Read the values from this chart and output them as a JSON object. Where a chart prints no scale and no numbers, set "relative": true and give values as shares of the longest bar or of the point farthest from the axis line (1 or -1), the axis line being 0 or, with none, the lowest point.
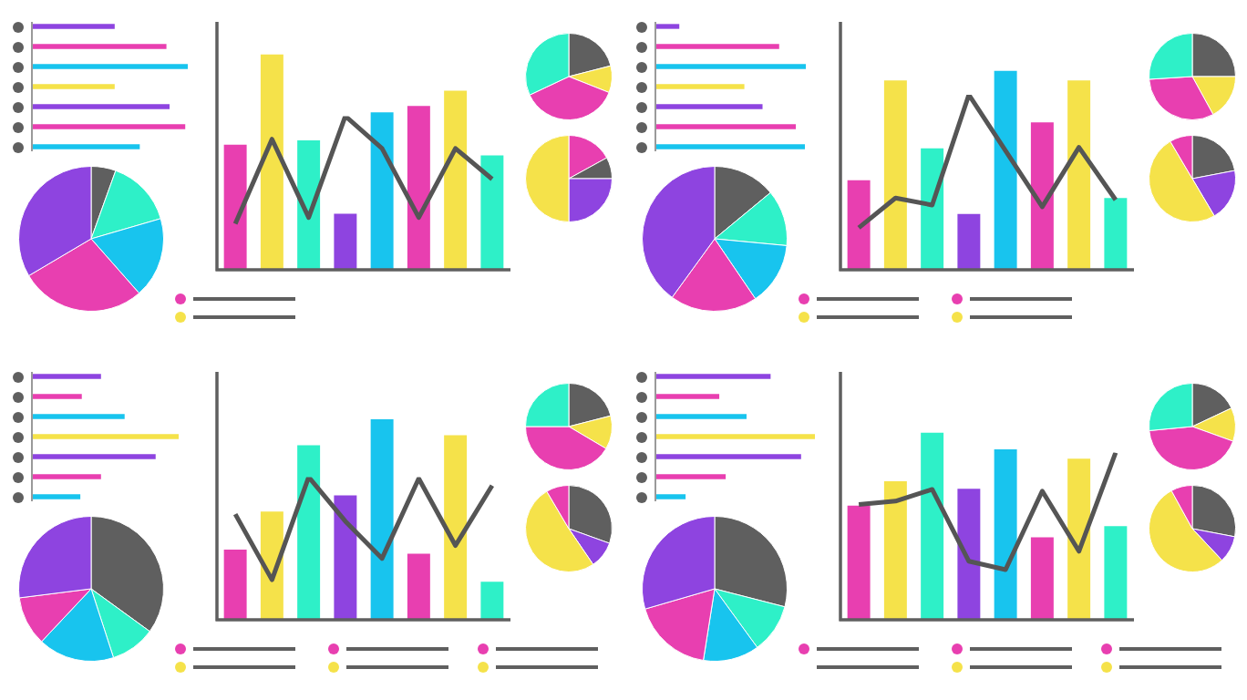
{
  "chart_data": [
    {
      "type": "bar",
      "orientation": "horizontal",
      "relative": true,
      "categories": [
        null,
        null,
        null,
        null,
        null,
        null,
        null
      ],
      "values": [
        0.53,
        0.86,
        1,
        0.53,
        0.88,
        0.98,
        0.69
      ],
      "colors": [
        "#8e44e0",
        "#e83fb0",
        "#18c4ee",
        "#f5e24a",
        "#8e44e0",
        "#e83fb0",
        "#18c4ee"
      ]
    },
    {
      "type": "pie",
      "categories": [
        null,
        null,
        null,
        null,
        null
      ],
      "values": [
        5.5,
        15,
        18,
        28,
        33.5
      ],
      "colors": [
        "#5f5f5f",
        "#2ef0c8",
        "#18c4ee",
        "#e83fb0",
        "#8e44e0"
      ]
    },
    {
      "type": "bar",
      "relative": true,
      "categories": [
        null,
        null,
        null,
        null,
        null,
        null,
        null,
        null
      ],
      "values": [
        0.58,
        1,
        0.6,
        0.26,
        0.73,
        0.76,
        0.83,
        0.53
      ],
      "colors": [
        "#e83fb0",
        "#f5e24a",
        "#2ef0c8",
        "#8e44e0",
        "#18c4ee",
        "#e83fb0",
        "#f5e24a",
        "#2ef0c8"
      ]
    },
    {
      "type": "line",
      "relative": true,
      "marker": "none",
      "categories": [
        null,
        null,
        null,
        null,
        null,
        null,
        null,
        null
      ],
      "series": [
        {
          "color": "#555555",
          "values": [
            0.3,
            0.85,
            0.34,
            1,
            0.79,
            0.34,
            0.79,
            0.59
          ]
        }
      ]
    },
    {
      "type": "pie",
      "categories": [
        null,
        null,
        null,
        null
      ],
      "values": [
        21,
        10,
        37,
        32
      ],
      "colors": [
        "#5f5f5f",
        "#f5e24a",
        "#e83fb0",
        "#2ef0c8"
      ]
    },
    {
      "type": "pie",
      "categories": [
        null,
        null,
        null,
        null
      ],
      "values": [
        17,
        8,
        25,
        50
      ],
      "colors": [
        "#e83fb0",
        "#5f5f5f",
        "#8e44e0",
        "#f5e24a"
      ]
    },
    {
      "type": "bar",
      "orientation": "horizontal",
      "relative": true,
      "categories": [
        null,
        null,
        null,
        null,
        null,
        null,
        null
      ],
      "values": [
        0.16,
        0.82,
        1,
        0.59,
        0.71,
        0.93,
        0.99
      ],
      "colors": [
        "#8e44e0",
        "#e83fb0",
        "#18c4ee",
        "#f5e24a",
        "#8e44e0",
        "#e83fb0",
        "#18c4ee"
      ]
    },
    {
      "type": "pie",
      "categories": [
        null,
        null,
        null,
        null,
        null
      ],
      "values": [
        14,
        12.5,
        14,
        19.5,
        40
      ],
      "colors": [
        "#5f5f5f",
        "#2ef0c8",
        "#18c4ee",
        "#e83fb0",
        "#8e44e0"
      ]
    },
    {
      "type": "bar",
      "relative": true,
      "categories": [
        null,
        null,
        null,
        null,
        null,
        null,
        null,
        null
      ],
      "values": [
        0.45,
        0.95,
        0.61,
        0.28,
        1,
        0.74,
        0.95,
        0.36
      ],
      "colors": [
        "#e83fb0",
        "#f5e24a",
        "#2ef0c8",
        "#8e44e0",
        "#18c4ee",
        "#e83fb0",
        "#f5e24a",
        "#2ef0c8"
      ]
    },
    {
      "type": "line",
      "relative": true,
      "marker": "none",
      "categories": [
        null,
        null,
        null,
        null,
        null,
        null,
        null,
        null
      ],
      "series": [
        {
          "color": "#555555",
          "values": [
            0.24,
            0.41,
            0.37,
            1,
            0.68,
            0.36,
            0.7,
            0.4
          ]
        }
      ]
    },
    {
      "type": "pie",
      "categories": [
        null,
        null,
        null,
        null
      ],
      "values": [
        25,
        17,
        32,
        26
      ],
      "colors": [
        "#5f5f5f",
        "#f5e24a",
        "#e83fb0",
        "#2ef0c8"
      ]
    },
    {
      "type": "pie",
      "categories": [
        null,
        null,
        null,
        null
      ],
      "values": [
        22,
        19.5,
        50,
        8.5
      ],
      "colors": [
        "#5f5f5f",
        "#8e44e0",
        "#f5e24a",
        "#e83fb0"
      ]
    },
    {
      "type": "bar",
      "orientation": "horizontal",
      "relative": true,
      "categories": [
        null,
        null,
        null,
        null,
        null,
        null,
        null
      ],
      "values": [
        0.47,
        0.34,
        0.63,
        1,
        0.84,
        0.47,
        0.33
      ],
      "colors": [
        "#8e44e0",
        "#e83fb0",
        "#18c4ee",
        "#f5e24a",
        "#8e44e0",
        "#e83fb0",
        "#18c4ee"
      ]
    },
    {
      "type": "pie",
      "categories": [
        null,
        null,
        null,
        null,
        null
      ],
      "values": [
        35,
        10,
        17,
        11,
        27
      ],
      "colors": [
        "#5f5f5f",
        "#2ef0c8",
        "#18c4ee",
        "#e83fb0",
        "#8e44e0"
      ]
    },
    {
      "type": "bar",
      "relative": true,
      "categories": [
        null,
        null,
        null,
        null,
        null,
        null,
        null,
        null
      ],
      "values": [
        0.35,
        0.54,
        0.87,
        0.62,
        1,
        0.33,
        0.92,
        0.19
      ],
      "colors": [
        "#e83fb0",
        "#f5e24a",
        "#2ef0c8",
        "#8e44e0",
        "#18c4ee",
        "#e83fb0",
        "#f5e24a",
        "#2ef0c8"
      ]
    },
    {
      "type": "line",
      "relative": true,
      "marker": "none",
      "categories": [
        null,
        null,
        null,
        null,
        null,
        null,
        null,
        null
      ],
      "series": [
        {
          "color": "#555555",
          "values": [
            0.74,
            0.28,
            1,
            0.69,
            0.43,
            0.99,
            0.52,
            0.94
          ]
        }
      ]
    },
    {
      "type": "pie",
      "categories": [
        null,
        null,
        null,
        null
      ],
      "values": [
        21,
        12.5,
        41.5,
        25
      ],
      "colors": [
        "#5f5f5f",
        "#f5e24a",
        "#e83fb0",
        "#2ef0c8"
      ]
    },
    {
      "type": "pie",
      "categories": [
        null,
        null,
        null,
        null
      ],
      "values": [
        30.5,
        10,
        51,
        8.5
      ],
      "colors": [
        "#5f5f5f",
        "#8e44e0",
        "#f5e24a",
        "#e83fb0"
      ]
    },
    {
      "type": "bar",
      "orientation": "horizontal",
      "relative": true,
      "categories": [
        null,
        null,
        null,
        null,
        null,
        null,
        null
      ],
      "values": [
        0.72,
        0.4,
        0.57,
        1,
        0.91,
        0.44,
        0.19
      ],
      "colors": [
        "#8e44e0",
        "#e83fb0",
        "#18c4ee",
        "#f5e24a",
        "#8e44e0",
        "#e83fb0",
        "#18c4ee"
      ]
    },
    {
      "type": "pie",
      "categories": [
        null,
        null,
        null,
        null,
        null
      ],
      "values": [
        29,
        11,
        12.5,
        18,
        29.5
      ],
      "colors": [
        "#5f5f5f",
        "#2ef0c8",
        "#18c4ee",
        "#e83fb0",
        "#8e44e0"
      ]
    },
    {
      "type": "bar",
      "relative": true,
      "categories": [
        null,
        null,
        null,
        null,
        null,
        null,
        null,
        null
      ],
      "values": [
        0.61,
        0.74,
        1,
        0.7,
        0.91,
        0.44,
        0.86,
        0.5
      ],
      "colors": [
        "#e83fb0",
        "#f5e24a",
        "#2ef0c8",
        "#8e44e0",
        "#18c4ee",
        "#e83fb0",
        "#f5e24a",
        "#2ef0c8"
      ]
    },
    {
      "type": "line",
      "relative": true,
      "marker": "none",
      "categories": [
        null,
        null,
        null,
        null,
        null,
        null,
        null,
        null
      ],
      "series": [
        {
          "color": "#555555",
          "values": [
            0.69,
            0.71,
            0.78,
            0.35,
            0.3,
            0.77,
            0.41,
            1
          ]
        }
      ]
    },
    {
      "type": "pie",
      "categories": [
        null,
        null,
        null,
        null
      ],
      "values": [
        18,
        12.5,
        43,
        26.5
      ],
      "colors": [
        "#5f5f5f",
        "#f5e24a",
        "#e83fb0",
        "#2ef0c8"
      ]
    },
    {
      "type": "pie",
      "categories": [
        null,
        null,
        null,
        null
      ],
      "values": [
        28,
        10,
        54,
        8
      ],
      "colors": [
        "#5f5f5f",
        "#8e44e0",
        "#f5e24a",
        "#e83fb0"
      ]
    }
  ]
}
